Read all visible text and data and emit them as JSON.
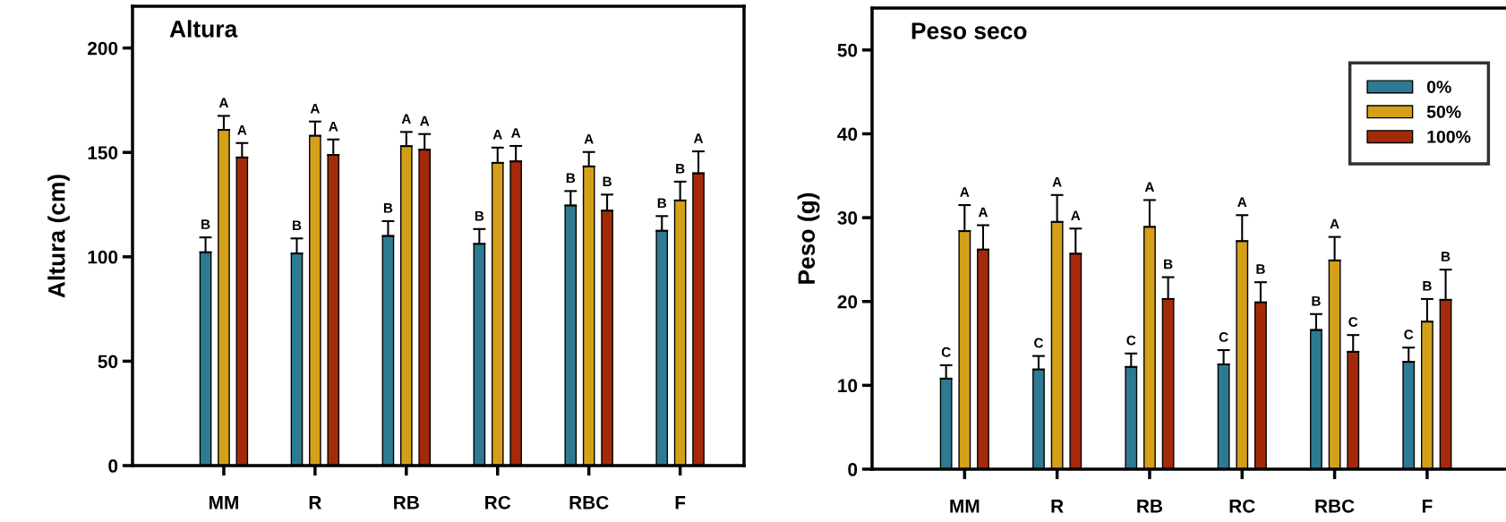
{
  "chart_data": [
    {
      "type": "bar",
      "title": "Altura",
      "ylabel": "Altura (cm)",
      "categories": [
        "MM",
        "R",
        "RB",
        "RC",
        "RBC",
        "F"
      ],
      "ylim": [
        0,
        220
      ],
      "yticks": [
        0,
        50,
        100,
        150,
        200
      ],
      "grid": false,
      "legend": false,
      "series": [
        {
          "color": "#2e7a92",
          "values": [
            102.2,
            101.6,
            110,
            106.2,
            124.6,
            112.5
          ],
          "errors": [
            [
              102.2,
              109.3
            ],
            [
              101.6,
              108.8
            ],
            [
              110,
              117.1
            ],
            [
              106.2,
              113.3
            ],
            [
              124.6,
              131.5
            ],
            [
              112.5,
              119.5
            ]
          ],
          "value_labels": [
            "B",
            "B",
            "B",
            "B",
            "B",
            "B"
          ]
        },
        {
          "color": "#d4a017",
          "values": [
            160.8,
            158,
            153,
            145,
            143.3,
            127
          ],
          "errors": [
            [
              160.8,
              167.5
            ],
            [
              158,
              164.8
            ],
            [
              153,
              159.8
            ],
            [
              145,
              152.3
            ],
            [
              143.3,
              150.2
            ],
            [
              127,
              136
            ]
          ],
          "value_labels": [
            "A",
            "A",
            "A",
            "A",
            "A",
            "B"
          ]
        },
        {
          "color": "#a52a0a",
          "values": [
            147.6,
            148.8,
            151.3,
            145.7,
            122.1,
            140
          ],
          "errors": [
            [
              147.6,
              154.5
            ],
            [
              148.8,
              156.2
            ],
            [
              151.3,
              158.8
            ],
            [
              145.7,
              153.1
            ],
            [
              122.1,
              129.8
            ],
            [
              140,
              150.5
            ]
          ],
          "value_labels": [
            "A",
            "A",
            "A",
            "A",
            "B",
            "A"
          ]
        }
      ]
    },
    {
      "type": "bar",
      "title": "Peso seco",
      "ylabel": "Peso (g)",
      "categories": [
        "MM",
        "R",
        "RB",
        "RC",
        "RBC",
        "F"
      ],
      "ylim": [
        0,
        55
      ],
      "yticks": [
        0,
        10,
        20,
        30,
        40,
        50
      ],
      "grid": false,
      "legend": "top right",
      "series": [
        {
          "name": "0%",
          "color": "#2e7a92",
          "values": [
            10.8,
            11.9,
            12.2,
            12.5,
            16.6,
            12.8
          ],
          "errors": [
            [
              10.8,
              12.4
            ],
            [
              11.9,
              13.5
            ],
            [
              12.2,
              13.8
            ],
            [
              12.5,
              14.2
            ],
            [
              16.6,
              18.5
            ],
            [
              12.8,
              14.5
            ]
          ],
          "value_labels": [
            "C",
            "C",
            "C",
            "C",
            "B",
            "C"
          ]
        },
        {
          "name": "50%",
          "color": "#d4a017",
          "values": [
            28.4,
            29.5,
            28.9,
            27.2,
            24.9,
            17.6
          ],
          "errors": [
            [
              28.4,
              31.5
            ],
            [
              29.5,
              32.7
            ],
            [
              28.9,
              32.1
            ],
            [
              27.2,
              30.3
            ],
            [
              24.9,
              27.7
            ],
            [
              17.6,
              20.3
            ]
          ],
          "value_labels": [
            "A",
            "A",
            "A",
            "A",
            "A",
            "B"
          ]
        },
        {
          "name": "100%",
          "color": "#a52a0a",
          "values": [
            26.2,
            25.7,
            20.3,
            19.9,
            14.0,
            20.2
          ],
          "errors": [
            [
              26.2,
              29.1
            ],
            [
              25.7,
              28.7
            ],
            [
              20.3,
              22.9
            ],
            [
              19.9,
              22.3
            ],
            [
              14.0,
              16.0
            ],
            [
              20.2,
              23.8
            ]
          ],
          "value_labels": [
            "A",
            "A",
            "B",
            "B",
            "C",
            "B"
          ]
        }
      ]
    }
  ]
}
